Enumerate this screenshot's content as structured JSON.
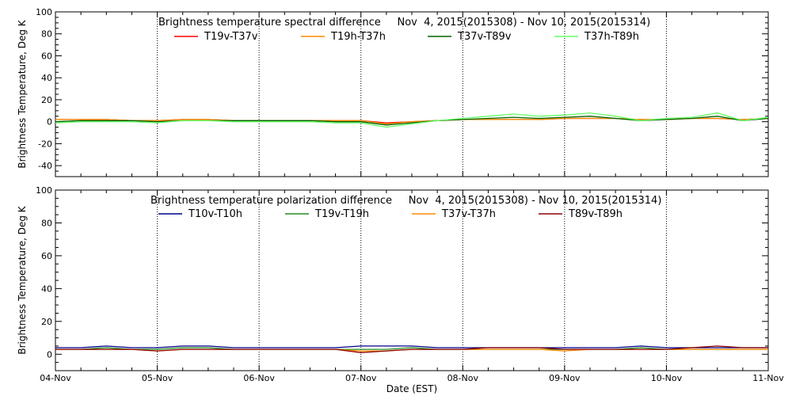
{
  "xaxis": {
    "label": "Date (EST)",
    "tick_labels": [
      "04-Nov",
      "05-Nov",
      "06-Nov",
      "07-Nov",
      "08-Nov",
      "09-Nov",
      "10-Nov",
      "11-Nov"
    ]
  },
  "chart_data": [
    {
      "type": "line",
      "title": "Brightness temperature spectral difference     Nov  4, 2015(2015308) - Nov 10, 2015(2015314)",
      "xlabel": "",
      "ylabel": "Brightness Temperature, Deg K",
      "x_range": [
        "04-Nov",
        "11-Nov"
      ],
      "ylim": [
        -50,
        100
      ],
      "yticks": [
        -40,
        -20,
        0,
        20,
        40,
        60,
        80,
        100
      ],
      "grid": "vertical dotted lines at each day",
      "legend": "top, single row",
      "x_days": [
        0,
        0.25,
        0.5,
        0.75,
        1,
        1.25,
        1.5,
        1.75,
        2,
        2.25,
        2.5,
        2.75,
        3,
        3.25,
        3.5,
        3.75,
        4,
        4.25,
        4.5,
        4.75,
        5,
        5.25,
        5.5,
        5.75,
        6,
        6.25,
        6.5,
        6.75,
        7
      ],
      "series": [
        {
          "name": "T19v-T37v",
          "color": "#ff0000",
          "values": [
            2,
            2,
            2,
            1,
            1,
            2,
            2,
            1,
            1,
            1,
            1,
            1,
            1,
            -1,
            0,
            1,
            2,
            2,
            2,
            2,
            3,
            3,
            3,
            2,
            2,
            3,
            3,
            2,
            3
          ]
        },
        {
          "name": "T19h-T37h",
          "color": "#ff8c00",
          "values": [
            2,
            2,
            2,
            1,
            1,
            2,
            2,
            1,
            1,
            1,
            1,
            1,
            1,
            -2,
            0,
            1,
            2,
            2,
            2,
            2,
            3,
            3,
            3,
            2,
            2,
            3,
            3,
            2,
            3
          ]
        },
        {
          "name": "T37v-T89v",
          "color": "#006400",
          "values": [
            0,
            1,
            1,
            1,
            0,
            1,
            1,
            1,
            1,
            1,
            1,
            0,
            0,
            -3,
            -1,
            1,
            2,
            3,
            4,
            3,
            4,
            5,
            3,
            1,
            2,
            3,
            5,
            1,
            3
          ]
        },
        {
          "name": "T37h-T89h",
          "color": "#66ff66",
          "values": [
            -1,
            0,
            0,
            0,
            -1,
            1,
            1,
            0,
            0,
            0,
            0,
            -1,
            -1,
            -5,
            -2,
            1,
            3,
            5,
            7,
            5,
            6,
            8,
            5,
            1,
            3,
            4,
            8,
            1,
            4
          ]
        }
      ]
    },
    {
      "type": "line",
      "title": "Brightness temperature polarization difference     Nov  4, 2015(2015308) - Nov 10, 2015(2015314)",
      "xlabel": "Date (EST)",
      "ylabel": "Brightness Temperature, Deg K",
      "x_range": [
        "04-Nov",
        "11-Nov"
      ],
      "ylim": [
        -10,
        100
      ],
      "yticks": [
        0,
        20,
        40,
        60,
        80,
        100
      ],
      "grid": "vertical dotted lines at each day",
      "legend": "top, single row",
      "x_days": [
        0,
        0.25,
        0.5,
        0.75,
        1,
        1.25,
        1.5,
        1.75,
        2,
        2.25,
        2.5,
        2.75,
        3,
        3.25,
        3.5,
        3.75,
        4,
        4.25,
        4.5,
        4.75,
        5,
        5.25,
        5.5,
        5.75,
        6,
        6.25,
        6.5,
        6.75,
        7
      ],
      "series": [
        {
          "name": "T10v-T10h",
          "color": "#00008b",
          "values": [
            4,
            4,
            5,
            4,
            4,
            5,
            5,
            4,
            4,
            4,
            4,
            4,
            5,
            5,
            5,
            4,
            4,
            4,
            4,
            4,
            4,
            4,
            4,
            5,
            4,
            4,
            4,
            4,
            4
          ]
        },
        {
          "name": "T19v-T19h",
          "color": "#228b22",
          "values": [
            3,
            3,
            4,
            3,
            3,
            4,
            4,
            3,
            3,
            3,
            3,
            3,
            3,
            3,
            4,
            3,
            3,
            3,
            3,
            3,
            3,
            3,
            3,
            4,
            3,
            3,
            3,
            3,
            3
          ]
        },
        {
          "name": "T37v-T37h",
          "color": "#ff8c00",
          "values": [
            3,
            3,
            3,
            3,
            2,
            3,
            3,
            3,
            3,
            3,
            3,
            3,
            2,
            2,
            3,
            3,
            3,
            3,
            3,
            3,
            2,
            3,
            3,
            3,
            3,
            3,
            3,
            3,
            3
          ]
        },
        {
          "name": "T89v-T89h",
          "color": "#8b0000",
          "values": [
            3,
            3,
            3,
            3,
            2,
            3,
            3,
            3,
            3,
            3,
            3,
            3,
            1,
            2,
            3,
            3,
            3,
            4,
            4,
            4,
            3,
            3,
            3,
            3,
            3,
            4,
            5,
            4,
            4
          ]
        }
      ]
    }
  ]
}
